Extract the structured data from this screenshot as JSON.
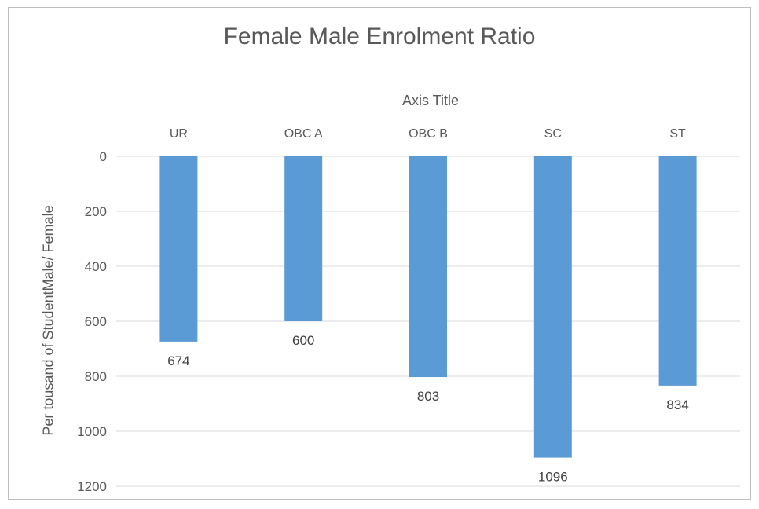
{
  "chart_data": {
    "type": "bar",
    "title": "Female Male Enrolment Ratio",
    "xlabel": "Axis Title",
    "ylabel": "Per tousand of StudentMale/ Female",
    "categories": [
      "UR",
      "OBC A",
      "OBC B",
      "SC",
      "ST"
    ],
    "values": [
      674,
      600,
      803,
      1096,
      834
    ],
    "ylim": [
      0,
      1200
    ],
    "yticks": [
      "0",
      "200",
      "400",
      "600",
      "800",
      "1000",
      "1200"
    ],
    "y_axis_reversed": true,
    "x_axis_position": "top",
    "grid": true,
    "data_labels": true,
    "legend": "none"
  },
  "colors": {
    "bar": "#5b9bd5",
    "grid": "#d9d9d9",
    "text": "#595959"
  }
}
